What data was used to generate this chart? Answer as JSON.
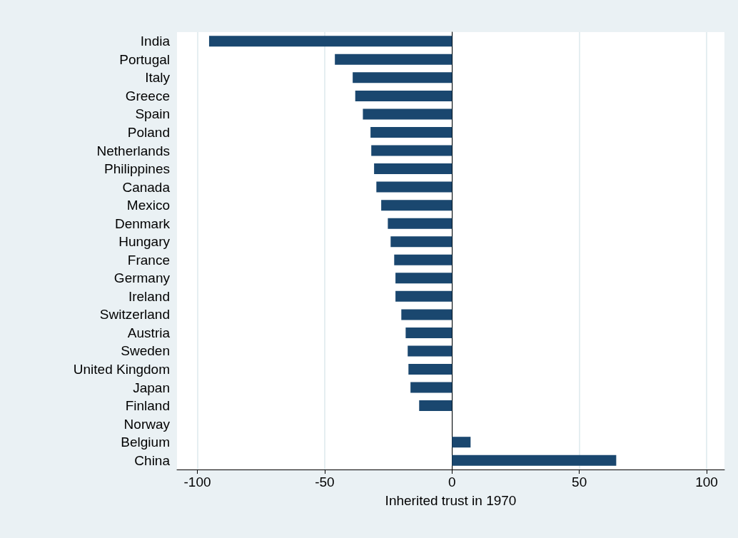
{
  "chart_data": {
    "type": "bar",
    "orientation": "horizontal",
    "xlabel": "Inherited trust in 1970",
    "categories": [
      "India",
      "Portugal",
      "Italy",
      "Greece",
      "Spain",
      "Poland",
      "Netherlands",
      "Philippines",
      "Canada",
      "Mexico",
      "Denmark",
      "Hungary",
      "France",
      "Germany",
      "Ireland",
      "Switzerland",
      "Austria",
      "Sweden",
      "United Kingdom",
      "Japan",
      "Finland",
      "Norway",
      "Belgium",
      "China"
    ],
    "values": [
      -95.4,
      -46,
      -39,
      -38,
      -35,
      -32,
      -31.7,
      -30.6,
      -29.7,
      -27.8,
      -25.2,
      -24.1,
      -22.7,
      -22.2,
      -22.2,
      -19.9,
      -18.2,
      -17.4,
      -17.1,
      -16.3,
      -12.9,
      0,
      7.3,
      64.5
    ],
    "color": "#1a476f",
    "xlim": [
      -108,
      107
    ],
    "xticks": [
      -100,
      -50,
      0,
      50,
      100
    ],
    "grid": "x"
  }
}
